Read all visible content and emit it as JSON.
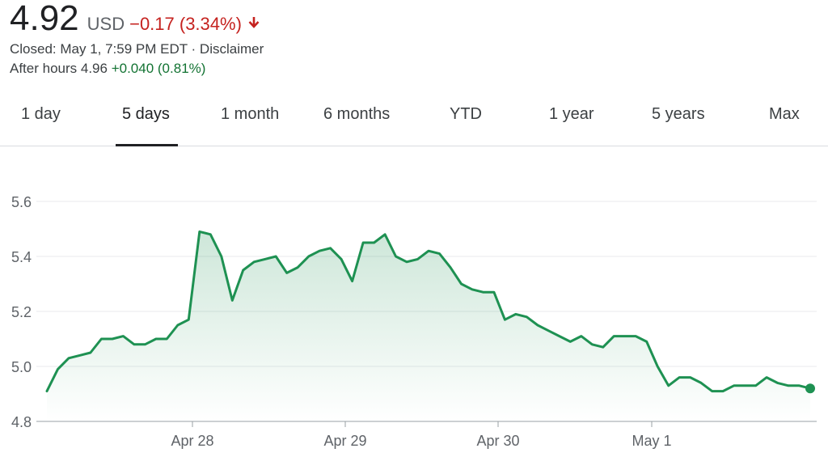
{
  "quote": {
    "price": "4.92",
    "currency": "USD",
    "change": "−0.17 (3.34%)",
    "status": "Closed: May 1, 7:59 PM EDT · Disclaimer",
    "after_hours_label": "After hours 4.96",
    "after_hours_change": "+0.040 (0.81%)"
  },
  "tabs": [
    {
      "label": "1 day",
      "selected": false
    },
    {
      "label": "5 days",
      "selected": true
    },
    {
      "label": "1 month",
      "selected": false
    },
    {
      "label": "6 months",
      "selected": false
    },
    {
      "label": "YTD",
      "selected": false
    },
    {
      "label": "1 year",
      "selected": false
    },
    {
      "label": "5 years",
      "selected": false
    },
    {
      "label": "Max",
      "selected": false
    }
  ],
  "colors": {
    "line": "#1e9152",
    "negative": "#c5221f",
    "positive": "#137333"
  },
  "chart_data": {
    "type": "line",
    "x_tick_labels": [
      "Apr 28",
      "Apr 29",
      "Apr 30",
      "May 1"
    ],
    "y_tick_labels": [
      "5.6",
      "5.4",
      "5.2",
      "5.0",
      "4.8"
    ],
    "y_ticks": [
      5.6,
      5.4,
      5.2,
      5.0,
      4.8
    ],
    "ylim": [
      4.8,
      5.6
    ],
    "grid": true,
    "series": [
      {
        "values": [
          4.91,
          4.99,
          5.03,
          5.04,
          5.05,
          5.1,
          5.1,
          5.11,
          5.08,
          5.08,
          5.1,
          5.1,
          5.15,
          5.17,
          5.49,
          5.48,
          5.4,
          5.24,
          5.35,
          5.38,
          5.39,
          5.4,
          5.34,
          5.36,
          5.4,
          5.42,
          5.43,
          5.39,
          5.31,
          5.45,
          5.45,
          5.48,
          5.4,
          5.38,
          5.39,
          5.42,
          5.41,
          5.36,
          5.3,
          5.28,
          5.27,
          5.27,
          5.17,
          5.19,
          5.18,
          5.15,
          5.13,
          5.11,
          5.09,
          5.11,
          5.08,
          5.07,
          5.11,
          5.11,
          5.11,
          5.09,
          5.0,
          4.93,
          4.96,
          4.96,
          4.94,
          4.91,
          4.91,
          4.93,
          4.93,
          4.93,
          4.96,
          4.94,
          4.93,
          4.93,
          4.92
        ]
      }
    ]
  }
}
